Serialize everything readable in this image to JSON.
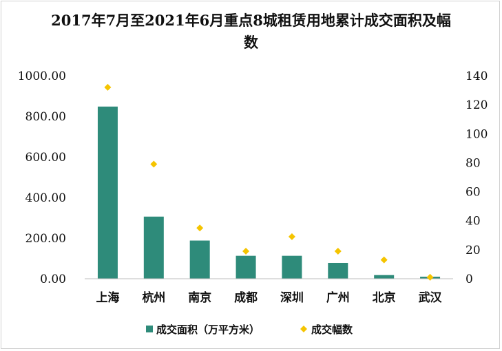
{
  "chart_data": {
    "type": "bar",
    "title_line1": "2017年7月至2021年6月重点8城租赁用地累计成交面积及幅",
    "title_line2": "数",
    "categories": [
      "上海",
      "杭州",
      "南京",
      "成都",
      "深圳",
      "广州",
      "北京",
      "武汉"
    ],
    "series": [
      {
        "name": "成交面积（万平方米）",
        "type": "bar",
        "axis": "left",
        "color": "#2e8b7a",
        "values": [
          848,
          306,
          188,
          113,
          113,
          78,
          18,
          10
        ]
      },
      {
        "name": "成交幅数",
        "type": "scatter",
        "axis": "right",
        "color": "#f5c400",
        "values": [
          132,
          79,
          35,
          19,
          29,
          19,
          13,
          1
        ]
      }
    ],
    "y_left": {
      "min": 0,
      "max": 1000,
      "ticks": [
        "0.00",
        "200.00",
        "400.00",
        "600.00",
        "800.00",
        "1000.00"
      ]
    },
    "y_right": {
      "min": 0,
      "max": 140,
      "ticks": [
        "0",
        "20",
        "40",
        "60",
        "80",
        "100",
        "120",
        "140"
      ]
    },
    "grid": false,
    "legend_position": "bottom"
  }
}
